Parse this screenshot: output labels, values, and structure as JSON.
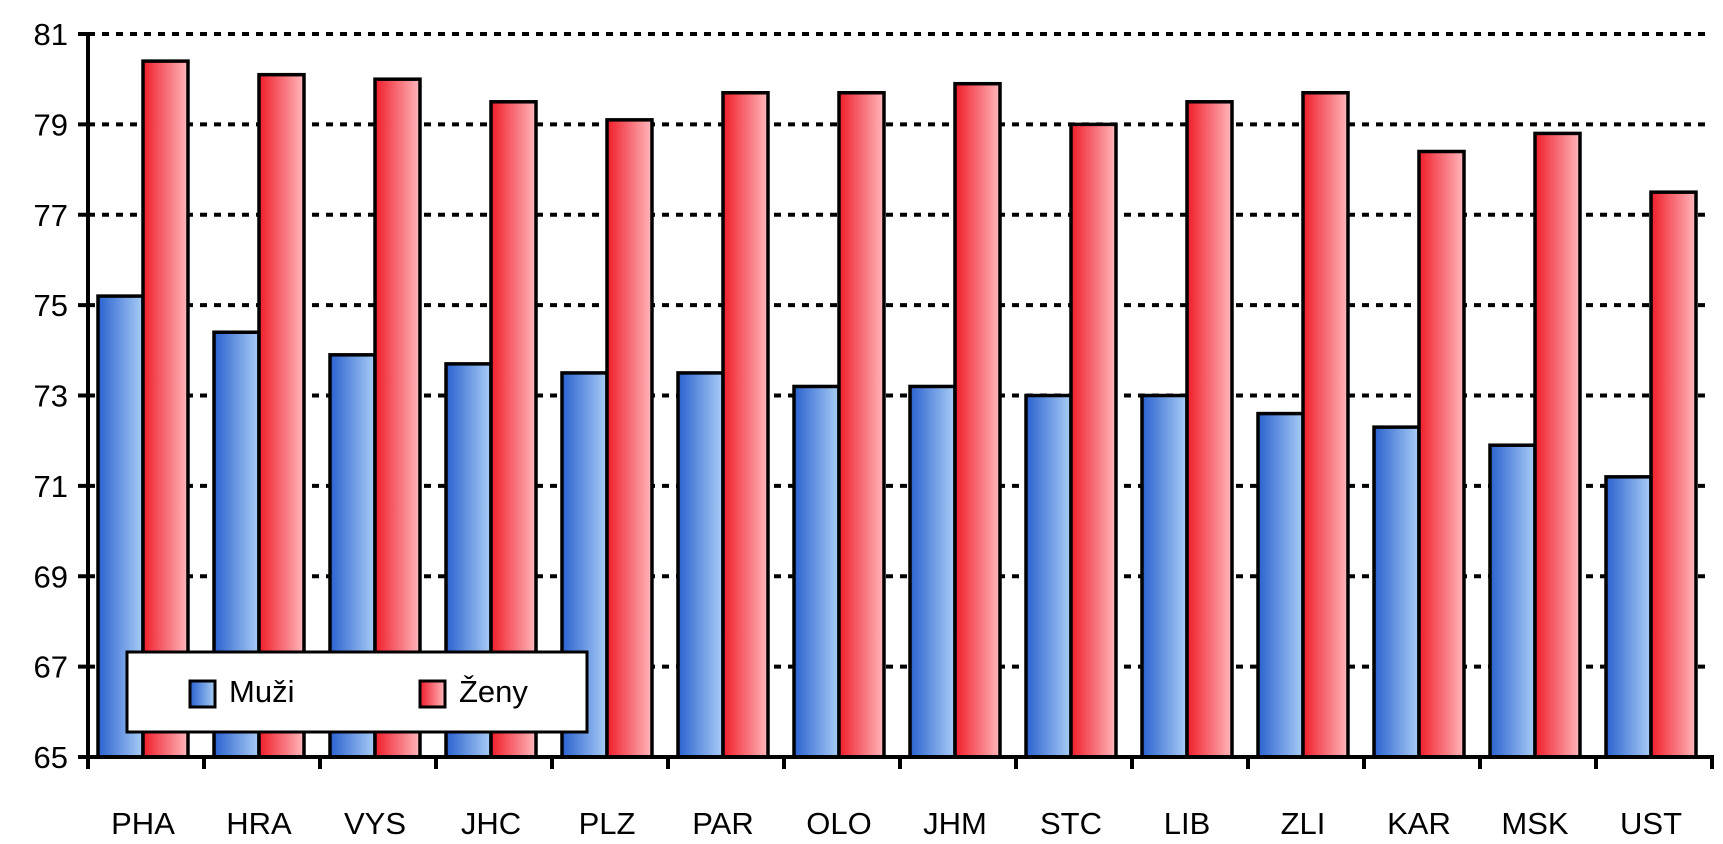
{
  "chart_data": {
    "type": "bar",
    "categories": [
      "PHA",
      "HRA",
      "VYS",
      "JHC",
      "PLZ",
      "PAR",
      "OLO",
      "JHM",
      "STC",
      "LIB",
      "ZLI",
      "KAR",
      "MSK",
      "UST"
    ],
    "series": [
      {
        "name": "Muži",
        "color": "#3a78d8",
        "values": [
          75.2,
          74.4,
          73.9,
          73.7,
          73.5,
          73.5,
          73.2,
          73.2,
          73.0,
          73.0,
          72.6,
          72.3,
          71.9,
          71.2
        ]
      },
      {
        "name": "Ženy",
        "color": "#f0303c",
        "values": [
          80.4,
          80.1,
          80.0,
          79.5,
          79.1,
          79.7,
          79.7,
          79.9,
          79.0,
          79.5,
          79.7,
          78.4,
          78.8,
          77.5
        ]
      }
    ],
    "title": "",
    "xlabel": "",
    "ylabel": "",
    "ylim": [
      65,
      81
    ],
    "yticks": [
      65,
      67,
      69,
      71,
      73,
      75,
      77,
      79,
      81
    ],
    "grid": true,
    "legend_position": "bottom-left"
  }
}
